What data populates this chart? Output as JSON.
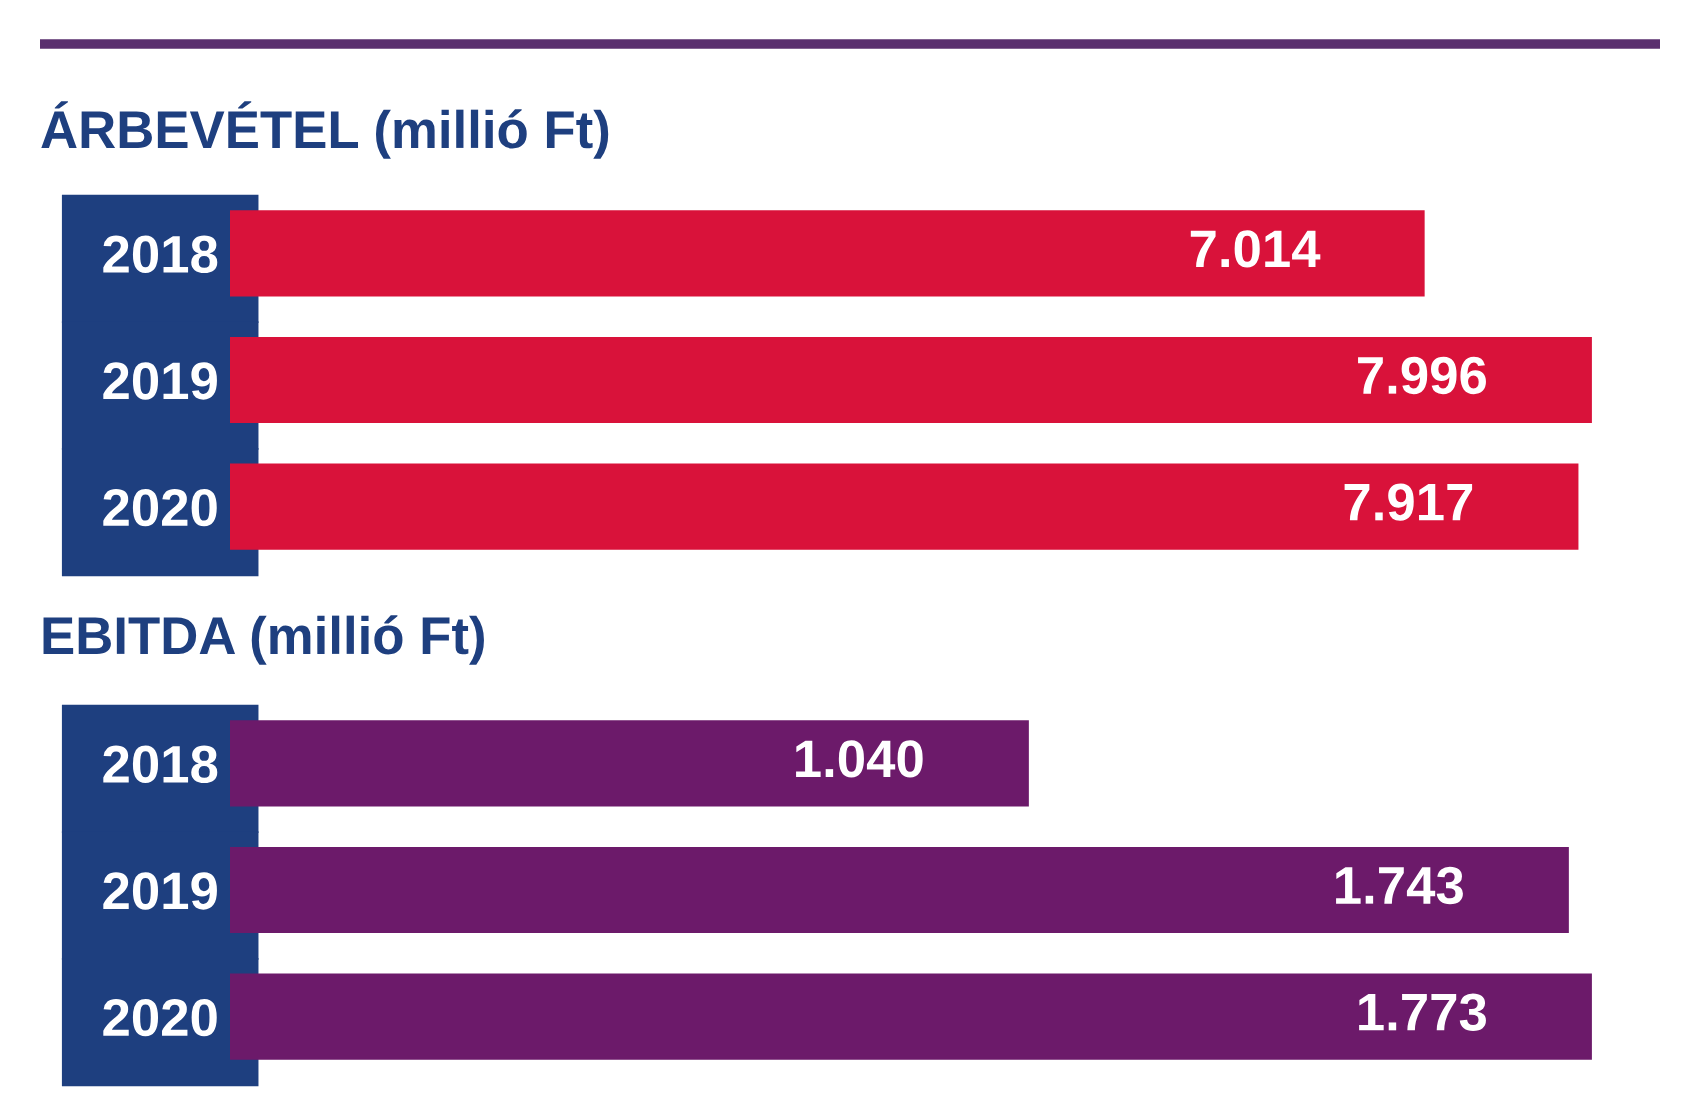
{
  "chart_data": [
    {
      "type": "bar",
      "orientation": "horizontal",
      "title": "ÁRBEVÉTEL (millió Ft)",
      "categories": [
        "2018",
        "2019",
        "2020"
      ],
      "values": [
        7014,
        7996,
        7917
      ],
      "value_labels": [
        "7.014",
        "7.996",
        "7.917"
      ],
      "color": "#d9123a",
      "tick_labels": "y",
      "grid": false,
      "legend": false
    },
    {
      "type": "bar",
      "orientation": "horizontal",
      "title": "EBITDA (millió Ft)",
      "categories": [
        "2018",
        "2019",
        "2020"
      ],
      "values": [
        1040,
        1743,
        1773
      ],
      "value_labels": [
        "1.040",
        "1.743",
        "1.773"
      ],
      "color": "#6c1a6a",
      "tick_labels": "y",
      "grid": false,
      "legend": false
    }
  ]
}
